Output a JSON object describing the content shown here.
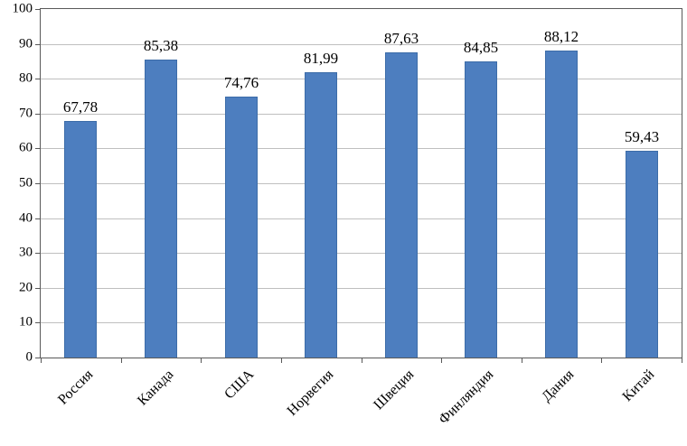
{
  "chart_data": {
    "type": "bar",
    "title": "",
    "xlabel": "",
    "ylabel": "",
    "categories": [
      "Россия",
      "Канада",
      "США",
      "Норвегия",
      "Швеция",
      "Финляндия",
      "Дания",
      "Китай"
    ],
    "values": [
      67.78,
      85.38,
      74.76,
      81.99,
      87.63,
      84.85,
      88.12,
      59.43
    ],
    "data_labels": [
      "67,78",
      "85,38",
      "74,76",
      "81,99",
      "87,63",
      "84,85",
      "88,12",
      "59,43"
    ],
    "ylim": [
      0,
      100
    ],
    "ytick_step": 10,
    "ytick_labels": [
      "0",
      "10",
      "20",
      "30",
      "40",
      "50",
      "60",
      "70",
      "80",
      "90",
      "100"
    ],
    "grid": true,
    "legend": "none",
    "colors": {
      "bar_fill": "#4d7ebf",
      "bar_border": "#3c6ca8",
      "gridline": "#bfbfbf",
      "axis": "#595959",
      "text": "#000000",
      "background": "#ffffff"
    }
  }
}
